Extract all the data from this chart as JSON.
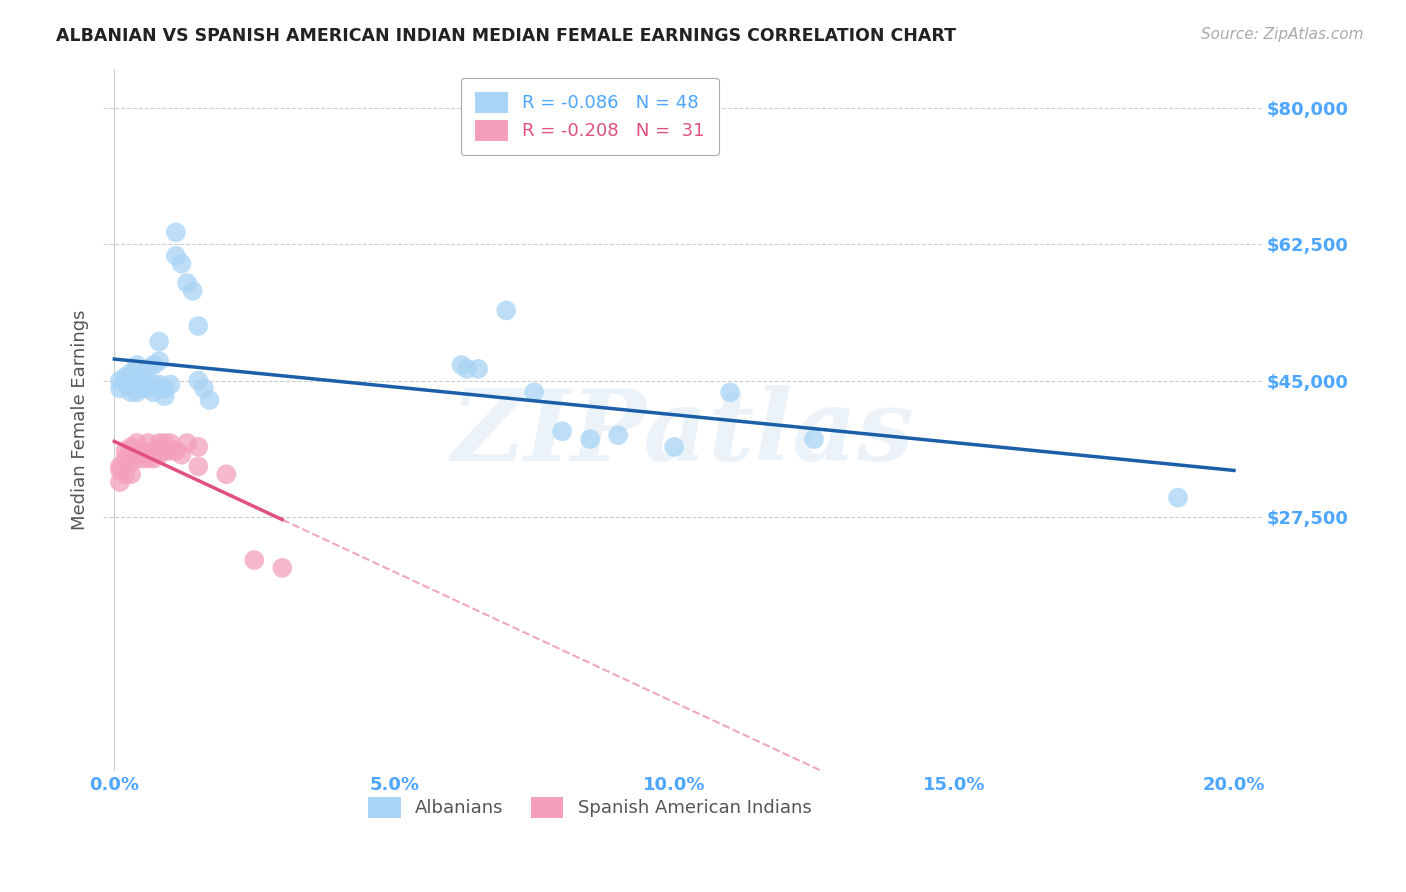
{
  "title": "ALBANIAN VS SPANISH AMERICAN INDIAN MEDIAN FEMALE EARNINGS CORRELATION CHART",
  "source": "Source: ZipAtlas.com",
  "ylabel": "Median Female Earnings",
  "watermark": "ZIPatlas",
  "xlim": [
    -0.002,
    0.205
  ],
  "ylim": [
    -5000,
    85000
  ],
  "yticks": [
    0,
    27500,
    45000,
    62500,
    80000
  ],
  "ytick_labels": [
    "",
    "$27,500",
    "$45,000",
    "$62,500",
    "$80,000"
  ],
  "xtick_labels": [
    "0.0%",
    "5.0%",
    "10.0%",
    "15.0%",
    "20.0%"
  ],
  "xticks": [
    0.0,
    0.05,
    0.1,
    0.15,
    0.2
  ],
  "albanians": {
    "color": "#a8d4f5",
    "line_color": "#1a5fa8",
    "x": [
      0.001,
      0.001,
      0.002,
      0.002,
      0.003,
      0.003,
      0.003,
      0.003,
      0.004,
      0.004,
      0.004,
      0.004,
      0.004,
      0.005,
      0.005,
      0.005,
      0.006,
      0.006,
      0.007,
      0.007,
      0.007,
      0.008,
      0.008,
      0.008,
      0.009,
      0.009,
      0.01,
      0.011,
      0.011,
      0.012,
      0.013,
      0.014,
      0.015,
      0.015,
      0.016,
      0.017,
      0.062,
      0.063,
      0.065,
      0.07,
      0.075,
      0.08,
      0.085,
      0.09,
      0.1,
      0.11,
      0.125,
      0.19
    ],
    "y": [
      45000,
      44000,
      45500,
      44500,
      44500,
      43500,
      44200,
      46000,
      44000,
      43500,
      44500,
      44000,
      47000,
      44000,
      44500,
      45000,
      46500,
      44000,
      47000,
      44500,
      43500,
      50000,
      47500,
      44500,
      44000,
      43000,
      44500,
      64000,
      61000,
      60000,
      57500,
      56500,
      52000,
      45000,
      44000,
      42500,
      47000,
      46500,
      46500,
      54000,
      43500,
      38500,
      37500,
      38000,
      36500,
      43500,
      37500,
      30000
    ]
  },
  "spanish_american_indians": {
    "color": "#f4a0bb",
    "line_color": "#e05080",
    "x": [
      0.001,
      0.001,
      0.001,
      0.002,
      0.002,
      0.002,
      0.003,
      0.003,
      0.003,
      0.004,
      0.004,
      0.005,
      0.005,
      0.006,
      0.006,
      0.007,
      0.007,
      0.008,
      0.008,
      0.009,
      0.009,
      0.01,
      0.01,
      0.011,
      0.012,
      0.013,
      0.015,
      0.015,
      0.02,
      0.025,
      0.03
    ],
    "y": [
      34000,
      33500,
      32000,
      36000,
      35000,
      33000,
      36500,
      34500,
      33000,
      37000,
      35500,
      36000,
      35000,
      37000,
      35000,
      36000,
      35000,
      37000,
      35500,
      37000,
      36000,
      37000,
      36000,
      36000,
      35500,
      37000,
      36500,
      34000,
      33000,
      22000,
      21000
    ]
  },
  "background_color": "#ffffff",
  "grid_color": "#cccccc",
  "title_color": "#222222",
  "axis_label_color": "#555555",
  "tick_color_blue": "#4da6ff",
  "source_color": "#aaaaaa"
}
